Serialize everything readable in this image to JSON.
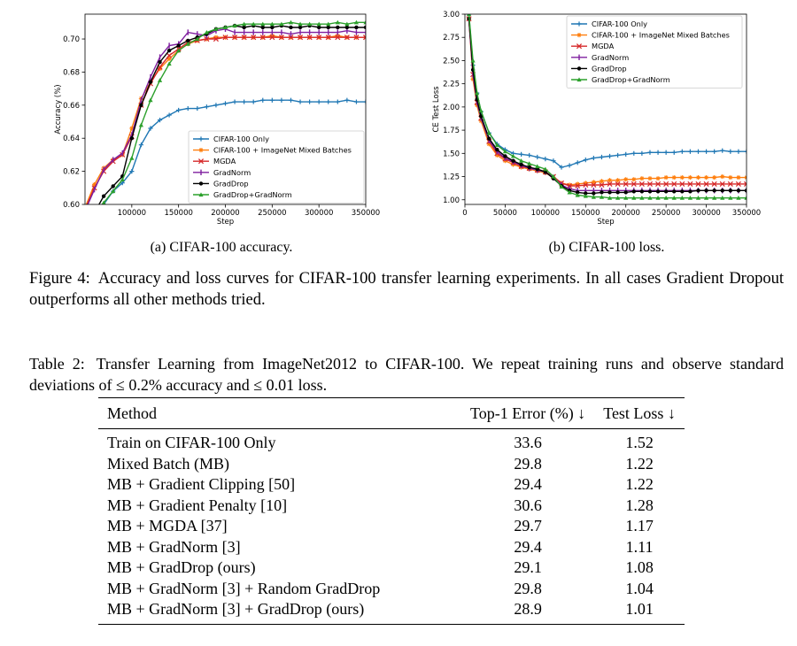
{
  "chart_data": [
    {
      "type": "line",
      "xlabel": "Step",
      "ylabel": "Accuracy (%)",
      "xlim": [
        50000,
        350000
      ],
      "ylim": [
        0.6,
        0.715
      ],
      "xticks": [
        100000,
        150000,
        200000,
        250000,
        300000,
        350000
      ],
      "xtick_labels": [
        "100000",
        "150000",
        "200000",
        "250000",
        "300000",
        "350000"
      ],
      "yticks": [
        0.6,
        0.62,
        0.64,
        0.66,
        0.68,
        0.7
      ],
      "ytick_labels": [
        "0.60",
        "0.62",
        "0.64",
        "0.66",
        "0.68",
        "0.70"
      ],
      "legend_position": "lower-right",
      "grid": false,
      "x": [
        50000,
        60000,
        70000,
        80000,
        90000,
        100000,
        110000,
        120000,
        130000,
        140000,
        150000,
        160000,
        170000,
        180000,
        190000,
        200000,
        210000,
        220000,
        230000,
        240000,
        250000,
        260000,
        270000,
        280000,
        290000,
        300000,
        310000,
        320000,
        330000,
        340000,
        350000
      ],
      "series": [
        {
          "name": "CIFAR-100 Only",
          "color": "#1f77b4",
          "marker": "+",
          "values": [
            0.58,
            0.59,
            0.6,
            0.608,
            0.613,
            0.62,
            0.636,
            0.646,
            0.651,
            0.654,
            0.657,
            0.658,
            0.658,
            0.659,
            0.66,
            0.661,
            0.662,
            0.662,
            0.662,
            0.663,
            0.663,
            0.663,
            0.663,
            0.662,
            0.662,
            0.662,
            0.662,
            0.662,
            0.663,
            0.662,
            0.662
          ]
        },
        {
          "name": "CIFAR-100 + ImageNet Mixed Batches",
          "color": "#ff7f0e",
          "marker": "*",
          "values": [
            0.598,
            0.612,
            0.622,
            0.627,
            0.63,
            0.646,
            0.664,
            0.674,
            0.682,
            0.688,
            0.693,
            0.697,
            0.699,
            0.7,
            0.701,
            0.701,
            0.701,
            0.701,
            0.701,
            0.701,
            0.702,
            0.701,
            0.701,
            0.701,
            0.701,
            0.701,
            0.701,
            0.702,
            0.701,
            0.701,
            0.701
          ]
        },
        {
          "name": "MGDA",
          "color": "#d62728",
          "marker": "x",
          "values": [
            0.597,
            0.61,
            0.62,
            0.626,
            0.63,
            0.641,
            0.66,
            0.673,
            0.683,
            0.69,
            0.694,
            0.698,
            0.699,
            0.7,
            0.7,
            0.701,
            0.701,
            0.701,
            0.701,
            0.701,
            0.701,
            0.701,
            0.701,
            0.701,
            0.701,
            0.701,
            0.701,
            0.701,
            0.701,
            0.701,
            0.701
          ]
        },
        {
          "name": "GradNorm",
          "color": "#7f1f9f",
          "marker": "|",
          "values": [
            0.596,
            0.609,
            0.621,
            0.627,
            0.631,
            0.642,
            0.663,
            0.677,
            0.689,
            0.696,
            0.697,
            0.704,
            0.703,
            0.702,
            0.705,
            0.706,
            0.704,
            0.704,
            0.704,
            0.704,
            0.704,
            0.704,
            0.703,
            0.704,
            0.704,
            0.704,
            0.704,
            0.704,
            0.705,
            0.704,
            0.704
          ]
        },
        {
          "name": "GradDrop",
          "color": "#000000",
          "marker": "o",
          "values": [
            0.58,
            0.595,
            0.605,
            0.611,
            0.617,
            0.64,
            0.66,
            0.674,
            0.686,
            0.693,
            0.696,
            0.699,
            0.701,
            0.703,
            0.706,
            0.707,
            0.708,
            0.707,
            0.708,
            0.707,
            0.707,
            0.708,
            0.707,
            0.707,
            0.708,
            0.707,
            0.707,
            0.707,
            0.707,
            0.707,
            0.707
          ]
        },
        {
          "name": "GradDrop+GradNorm",
          "color": "#2ca02c",
          "marker": "^",
          "values": [
            0.58,
            0.592,
            0.601,
            0.608,
            0.615,
            0.628,
            0.648,
            0.663,
            0.675,
            0.685,
            0.693,
            0.697,
            0.7,
            0.704,
            0.706,
            0.707,
            0.708,
            0.709,
            0.709,
            0.709,
            0.709,
            0.709,
            0.71,
            0.709,
            0.709,
            0.709,
            0.709,
            0.71,
            0.709,
            0.71,
            0.71
          ]
        }
      ]
    },
    {
      "type": "line",
      "xlabel": "Step",
      "ylabel": "CE Test Loss",
      "xlim": [
        0,
        350000
      ],
      "ylim": [
        0.95,
        3.0
      ],
      "xticks": [
        0,
        50000,
        100000,
        150000,
        200000,
        250000,
        300000,
        350000
      ],
      "xtick_labels": [
        "0",
        "50000",
        "100000",
        "150000",
        "200000",
        "250000",
        "300000",
        "350000"
      ],
      "yticks": [
        1.0,
        1.25,
        1.5,
        1.75,
        2.0,
        2.25,
        2.5,
        2.75,
        3.0
      ],
      "ytick_labels": [
        "1.00",
        "1.25",
        "1.50",
        "1.75",
        "2.00",
        "2.25",
        "2.50",
        "2.75",
        "3.00"
      ],
      "legend_position": "upper-right",
      "grid": false,
      "x": [
        5000,
        10000,
        15000,
        20000,
        30000,
        40000,
        50000,
        60000,
        70000,
        80000,
        90000,
        100000,
        110000,
        120000,
        130000,
        140000,
        150000,
        160000,
        170000,
        180000,
        190000,
        200000,
        210000,
        220000,
        230000,
        240000,
        250000,
        260000,
        270000,
        280000,
        290000,
        300000,
        310000,
        320000,
        330000,
        340000,
        350000
      ],
      "series": [
        {
          "name": "CIFAR-100 Only",
          "color": "#1f77b4",
          "marker": "+",
          "values": [
            3.0,
            2.45,
            2.15,
            1.95,
            1.72,
            1.6,
            1.54,
            1.5,
            1.49,
            1.48,
            1.46,
            1.44,
            1.42,
            1.35,
            1.37,
            1.4,
            1.43,
            1.45,
            1.46,
            1.47,
            1.48,
            1.49,
            1.5,
            1.5,
            1.51,
            1.51,
            1.51,
            1.51,
            1.52,
            1.52,
            1.52,
            1.52,
            1.52,
            1.53,
            1.52,
            1.52,
            1.52
          ]
        },
        {
          "name": "CIFAR-100 + ImageNet Mixed Batches",
          "color": "#ff7f0e",
          "marker": "*",
          "values": [
            2.95,
            2.3,
            2.02,
            1.85,
            1.6,
            1.48,
            1.42,
            1.38,
            1.35,
            1.33,
            1.31,
            1.29,
            1.24,
            1.18,
            1.16,
            1.17,
            1.18,
            1.19,
            1.2,
            1.21,
            1.21,
            1.22,
            1.22,
            1.23,
            1.23,
            1.23,
            1.24,
            1.24,
            1.24,
            1.24,
            1.24,
            1.24,
            1.24,
            1.25,
            1.24,
            1.24,
            1.24
          ]
        },
        {
          "name": "MGDA",
          "color": "#d62728",
          "marker": "x",
          "values": [
            2.95,
            2.35,
            2.05,
            1.88,
            1.63,
            1.5,
            1.44,
            1.4,
            1.36,
            1.34,
            1.32,
            1.3,
            1.25,
            1.18,
            1.15,
            1.15,
            1.16,
            1.16,
            1.16,
            1.17,
            1.17,
            1.17,
            1.17,
            1.17,
            1.17,
            1.17,
            1.17,
            1.17,
            1.17,
            1.17,
            1.17,
            1.17,
            1.17,
            1.17,
            1.17,
            1.17,
            1.17
          ]
        },
        {
          "name": "GradNorm",
          "color": "#7f1f9f",
          "marker": "|",
          "values": [
            2.95,
            2.35,
            2.05,
            1.88,
            1.64,
            1.52,
            1.45,
            1.41,
            1.37,
            1.34,
            1.32,
            1.3,
            1.24,
            1.16,
            1.12,
            1.1,
            1.1,
            1.1,
            1.1,
            1.1,
            1.1,
            1.1,
            1.1,
            1.1,
            1.1,
            1.1,
            1.1,
            1.1,
            1.1,
            1.1,
            1.1,
            1.1,
            1.1,
            1.1,
            1.1,
            1.1,
            1.1
          ]
        },
        {
          "name": "GradDrop",
          "color": "#000000",
          "marker": "o",
          "values": [
            2.95,
            2.4,
            2.08,
            1.9,
            1.66,
            1.54,
            1.47,
            1.42,
            1.38,
            1.35,
            1.33,
            1.3,
            1.23,
            1.15,
            1.1,
            1.08,
            1.07,
            1.07,
            1.08,
            1.08,
            1.08,
            1.08,
            1.09,
            1.09,
            1.09,
            1.09,
            1.09,
            1.09,
            1.09,
            1.09,
            1.1,
            1.1,
            1.1,
            1.1,
            1.1,
            1.1,
            1.1
          ]
        },
        {
          "name": "GradDrop+GradNorm",
          "color": "#2ca02c",
          "marker": "^",
          "values": [
            3.0,
            2.5,
            2.15,
            1.96,
            1.72,
            1.59,
            1.52,
            1.47,
            1.42,
            1.39,
            1.36,
            1.33,
            1.25,
            1.14,
            1.08,
            1.05,
            1.04,
            1.03,
            1.03,
            1.02,
            1.02,
            1.02,
            1.02,
            1.02,
            1.02,
            1.02,
            1.02,
            1.02,
            1.02,
            1.02,
            1.02,
            1.02,
            1.02,
            1.02,
            1.02,
            1.02,
            1.02
          ]
        }
      ]
    }
  ],
  "subcaptions": {
    "a": "(a) CIFAR-100 accuracy.",
    "b": "(b) CIFAR-100 loss."
  },
  "figure_caption": {
    "label": "Figure 4:",
    "text": "Accuracy and loss curves for CIFAR-100 transfer learning experiments. In all cases Gradient Dropout outperforms all other methods tried."
  },
  "table": {
    "caption_label": "Table 2:",
    "caption_text": "Transfer Learning from ImageNet2012 to CIFAR-100. We repeat training runs and observe standard deviations of ≤ 0.2% accuracy and ≤ 0.01 loss.",
    "headers": [
      "Method",
      "Top-1 Error (%) ↓",
      "Test Loss ↓"
    ],
    "rows": [
      [
        "Train on CIFAR-100 Only",
        "33.6",
        "1.52"
      ],
      [
        "Mixed Batch (MB)",
        "29.8",
        "1.22"
      ],
      [
        "MB + Gradient Clipping [50]",
        "29.4",
        "1.22"
      ],
      [
        "MB + Gradient Penalty [10]",
        "30.6",
        "1.28"
      ],
      [
        "MB + MGDA [37]",
        "29.7",
        "1.17"
      ],
      [
        "MB + GradNorm [3]",
        "29.4",
        "1.11"
      ],
      [
        "MB + GradDrop (ours)",
        "29.1",
        "1.08"
      ],
      [
        "MB + GradNorm [3] + Random GradDrop",
        "29.8",
        "1.04"
      ],
      [
        "MB + GradNorm [3] + GradDrop (ours)",
        "28.9",
        "1.01"
      ]
    ]
  }
}
